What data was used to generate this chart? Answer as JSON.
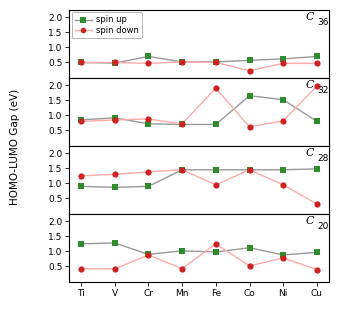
{
  "x_labels": [
    "Ti",
    "V",
    "Cr",
    "Mn",
    "Fe",
    "Co",
    "Ni",
    "Cu"
  ],
  "panels": [
    {
      "label": "C",
      "subscript": "36",
      "spin_up": [
        0.5,
        0.48,
        0.7,
        0.52,
        0.52,
        0.57,
        0.62,
        0.7
      ],
      "spin_down": [
        0.5,
        0.5,
        0.47,
        0.52,
        0.5,
        0.23,
        0.47,
        0.47
      ]
    },
    {
      "label": "C",
      "subscript": "32",
      "spin_up": [
        0.85,
        0.92,
        0.72,
        0.7,
        0.7,
        1.65,
        1.52,
        0.8
      ],
      "spin_down": [
        0.8,
        0.85,
        0.88,
        0.72,
        1.9,
        0.62,
        0.82,
        1.97
      ]
    },
    {
      "label": "C",
      "subscript": "28",
      "spin_up": [
        0.9,
        0.87,
        0.9,
        1.45,
        1.45,
        1.45,
        1.45,
        1.48
      ],
      "spin_down": [
        1.25,
        1.3,
        1.38,
        1.45,
        0.95,
        1.45,
        0.95,
        0.32
      ]
    },
    {
      "label": "C",
      "subscript": "20",
      "spin_up": [
        1.25,
        1.28,
        0.9,
        1.02,
        0.98,
        1.12,
        0.88,
        0.97
      ],
      "spin_down": [
        0.43,
        0.42,
        0.88,
        0.43,
        1.25,
        0.52,
        0.78,
        0.4
      ]
    }
  ],
  "ylabel": "HOMO-LUMO Gap (eV)",
  "ylim": [
    0.0,
    2.25
  ],
  "yticks": [
    0.5,
    1.0,
    1.5,
    2.0
  ],
  "spin_up_color": "#2e8b2e",
  "spin_down_color": "#cc2222",
  "spin_up_line_color": "#999999",
  "spin_down_line_color": "#ffaaaa",
  "legend_labels": [
    "spin up",
    "spin down"
  ],
  "marker_size": 4.5,
  "line_width": 1.0
}
